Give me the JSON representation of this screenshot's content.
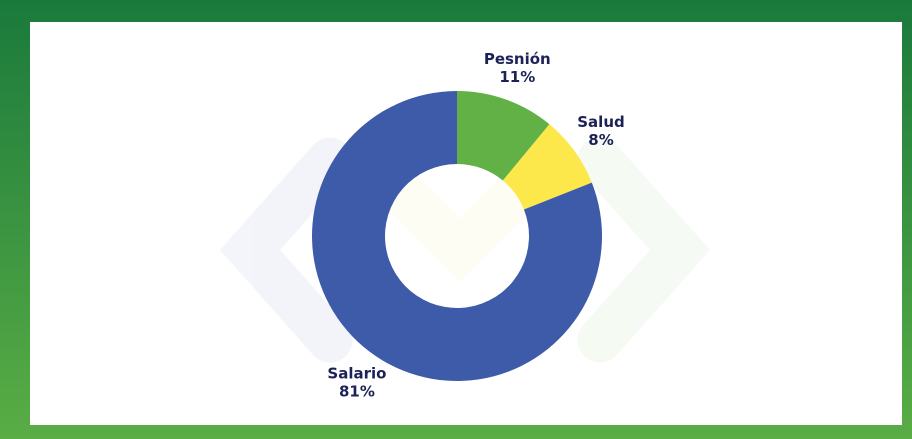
{
  "chart_data": {
    "type": "donut",
    "categories": [
      "Pesnión",
      "Salud",
      "Salario"
    ],
    "values": [
      11,
      8,
      81
    ],
    "value_labels": [
      "11%",
      "8%",
      "81%"
    ],
    "colors": [
      "#62b146",
      "#fde84b",
      "#3d5ba8"
    ]
  }
}
